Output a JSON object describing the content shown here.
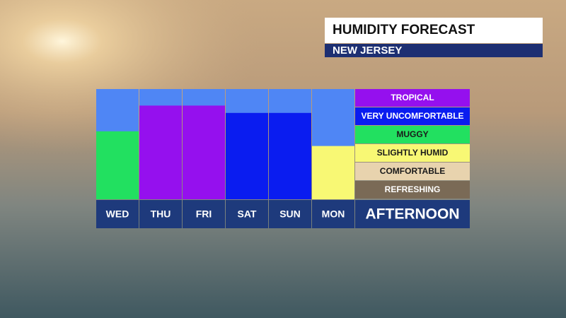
{
  "chart_data": {
    "type": "bar",
    "title": "HUMIDITY FORECAST",
    "subtitle": "NEW JERSEY",
    "period_label": "AFTERNOON",
    "categories": [
      "WED",
      "THU",
      "FRI",
      "SAT",
      "SUN",
      "MON"
    ],
    "values": [
      3.7,
      5.1,
      5.1,
      4.7,
      4.7,
      2.9
    ],
    "colors": [
      "#22e060",
      "#9510ee",
      "#9510ee",
      "#0a1cf0",
      "#0a1cf0",
      "#f8f874"
    ],
    "background_color": "#4f86f5",
    "ylim": [
      0,
      6
    ],
    "levels": [
      {
        "label": "TROPICAL",
        "color": "#9510ee",
        "text_color": "#ffffff"
      },
      {
        "label": "VERY UNCOMFORTABLE",
        "color": "#0a1cf0",
        "text_color": "#ffffff"
      },
      {
        "label": "MUGGY",
        "color": "#22e060",
        "text_color": "#1a1a1a"
      },
      {
        "label": "SLIGHTLY HUMID",
        "color": "#f8f874",
        "text_color": "#1a1a1a"
      },
      {
        "label": "COMFORTABLE",
        "color": "#e8d3ae",
        "text_color": "#1a1a1a"
      },
      {
        "label": "REFRESHING",
        "color": "#7a6a56",
        "text_color": "#ffffff"
      }
    ]
  }
}
